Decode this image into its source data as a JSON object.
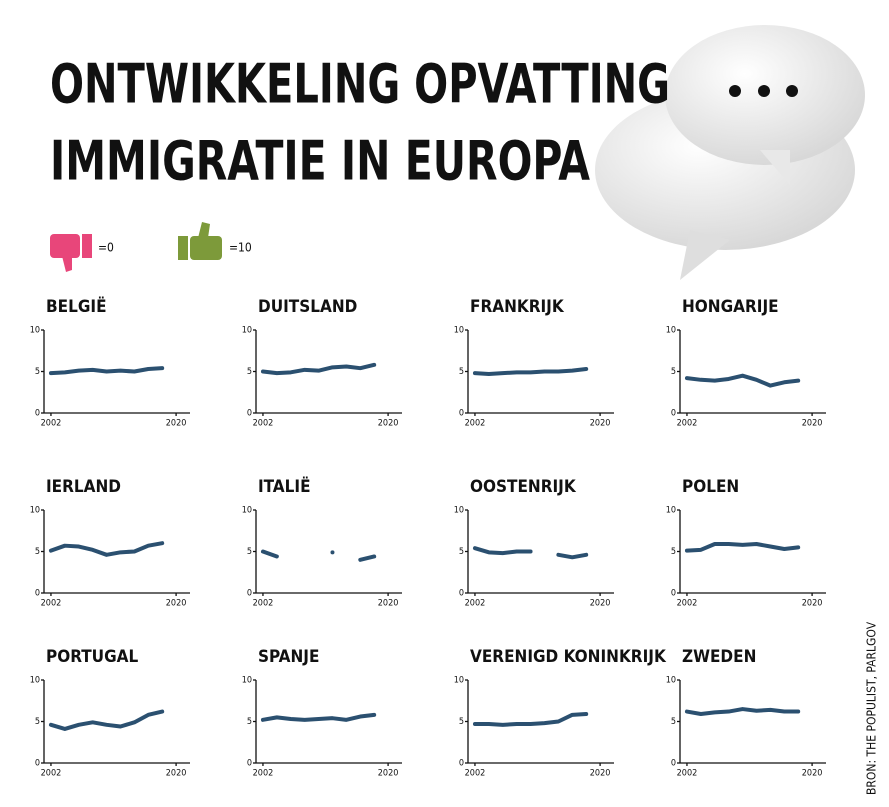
{
  "header": {
    "title": [
      "ONTWIKKELING OPVATTING",
      "IMMIGRATIE IN EUROPA"
    ],
    "legend": [
      {
        "label": "=0"
      },
      {
        "label": "=10"
      }
    ]
  },
  "source": "BRON: THE POPULIST, PARLGOV",
  "chart_data": [
    {
      "type": "line",
      "title": "BELGIË",
      "color": "#2b5070",
      "x": [
        2002,
        2004,
        2006,
        2008,
        2010,
        2012,
        2014,
        2016,
        2018
      ],
      "values": [
        4.8,
        4.9,
        5.1,
        5.2,
        5.0,
        5.1,
        5.0,
        5.3,
        5.4
      ],
      "xlim": [
        2001,
        2022
      ],
      "xticks": [
        2002,
        2020
      ],
      "ylim": [
        0,
        10
      ],
      "yticks": [
        0,
        5,
        10
      ]
    },
    {
      "type": "line",
      "title": "DUITSLAND",
      "color": "#2b5070",
      "x": [
        2002,
        2004,
        2006,
        2008,
        2010,
        2012,
        2014,
        2016,
        2018
      ],
      "values": [
        5.0,
        4.8,
        4.9,
        5.2,
        5.1,
        5.5,
        5.6,
        5.4,
        5.8
      ],
      "xlim": [
        2001,
        2022
      ],
      "xticks": [
        2002,
        2020
      ],
      "ylim": [
        0,
        10
      ],
      "yticks": [
        0,
        5,
        10
      ]
    },
    {
      "type": "line",
      "title": "FRANKRIJK",
      "color": "#2b5070",
      "x": [
        2002,
        2004,
        2006,
        2008,
        2010,
        2012,
        2014,
        2016,
        2018
      ],
      "values": [
        4.8,
        4.7,
        4.8,
        4.9,
        4.9,
        5.0,
        5.0,
        5.1,
        5.3
      ],
      "xlim": [
        2001,
        2022
      ],
      "xticks": [
        2002,
        2020
      ],
      "ylim": [
        0,
        10
      ],
      "yticks": [
        0,
        5,
        10
      ]
    },
    {
      "type": "line",
      "title": "HONGARIJE",
      "color": "#2b5070",
      "x": [
        2002,
        2004,
        2006,
        2008,
        2010,
        2012,
        2014,
        2016,
        2018
      ],
      "values": [
        4.2,
        4.0,
        3.9,
        4.1,
        4.5,
        4.0,
        3.3,
        3.7,
        3.9
      ],
      "xlim": [
        2001,
        2022
      ],
      "xticks": [
        2002,
        2020
      ],
      "ylim": [
        0,
        10
      ],
      "yticks": [
        0,
        5,
        10
      ]
    },
    {
      "type": "line",
      "title": "IERLAND",
      "color": "#2b5070",
      "x": [
        2002,
        2004,
        2006,
        2008,
        2010,
        2012,
        2014,
        2016,
        2018
      ],
      "values": [
        5.1,
        5.7,
        5.6,
        5.2,
        4.6,
        4.9,
        5.0,
        5.7,
        6.0
      ],
      "xlim": [
        2001,
        2022
      ],
      "xticks": [
        2002,
        2020
      ],
      "ylim": [
        0,
        10
      ],
      "yticks": [
        0,
        5,
        10
      ]
    },
    {
      "type": "line",
      "title": "ITALIË",
      "color": "#2b5070",
      "x": [
        2002,
        2004,
        2006,
        2008,
        2010,
        2012,
        2014,
        2016,
        2018
      ],
      "values": [
        5.0,
        4.4,
        null,
        null,
        null,
        4.9,
        null,
        4.0,
        4.4
      ],
      "xlim": [
        2001,
        2022
      ],
      "xticks": [
        2002,
        2020
      ],
      "ylim": [
        0,
        10
      ],
      "yticks": [
        0,
        5,
        10
      ]
    },
    {
      "type": "line",
      "title": "OOSTENRIJK",
      "color": "#2b5070",
      "x": [
        2002,
        2004,
        2006,
        2008,
        2010,
        2012,
        2014,
        2016,
        2018
      ],
      "values": [
        5.4,
        4.9,
        4.8,
        5.0,
        5.0,
        null,
        4.6,
        4.3,
        4.6
      ],
      "xlim": [
        2001,
        2022
      ],
      "xticks": [
        2002,
        2020
      ],
      "ylim": [
        0,
        10
      ],
      "yticks": [
        0,
        5,
        10
      ]
    },
    {
      "type": "line",
      "title": "POLEN",
      "color": "#2b5070",
      "x": [
        2002,
        2004,
        2006,
        2008,
        2010,
        2012,
        2014,
        2016,
        2018
      ],
      "values": [
        5.1,
        5.2,
        5.9,
        5.9,
        5.8,
        5.9,
        5.6,
        5.3,
        5.5
      ],
      "xlim": [
        2001,
        2022
      ],
      "xticks": [
        2002,
        2020
      ],
      "ylim": [
        0,
        10
      ],
      "yticks": [
        0,
        5,
        10
      ]
    },
    {
      "type": "line",
      "title": "PORTUGAL",
      "color": "#2b5070",
      "x": [
        2002,
        2004,
        2006,
        2008,
        2010,
        2012,
        2014,
        2016,
        2018
      ],
      "values": [
        4.6,
        4.1,
        4.6,
        4.9,
        4.6,
        4.4,
        4.9,
        5.8,
        6.2
      ],
      "xlim": [
        2001,
        2022
      ],
      "xticks": [
        2002,
        2020
      ],
      "ylim": [
        0,
        10
      ],
      "yticks": [
        0,
        5,
        10
      ]
    },
    {
      "type": "line",
      "title": "SPANJE",
      "color": "#2b5070",
      "x": [
        2002,
        2004,
        2006,
        2008,
        2010,
        2012,
        2014,
        2016,
        2018
      ],
      "values": [
        5.2,
        5.5,
        5.3,
        5.2,
        5.3,
        5.4,
        5.2,
        5.6,
        5.8
      ],
      "xlim": [
        2001,
        2022
      ],
      "xticks": [
        2002,
        2020
      ],
      "ylim": [
        0,
        10
      ],
      "yticks": [
        0,
        5,
        10
      ]
    },
    {
      "type": "line",
      "title": "VERENIGD KONINKRIJK",
      "color": "#2b5070",
      "x": [
        2002,
        2004,
        2006,
        2008,
        2010,
        2012,
        2014,
        2016,
        2018
      ],
      "values": [
        4.7,
        4.7,
        4.6,
        4.7,
        4.7,
        4.8,
        5.0,
        5.8,
        5.9
      ],
      "xlim": [
        2001,
        2022
      ],
      "xticks": [
        2002,
        2020
      ],
      "ylim": [
        0,
        10
      ],
      "yticks": [
        0,
        5,
        10
      ]
    },
    {
      "type": "line",
      "title": "ZWEDEN",
      "color": "#2b5070",
      "x": [
        2002,
        2004,
        2006,
        2008,
        2010,
        2012,
        2014,
        2016,
        2018
      ],
      "values": [
        6.2,
        5.9,
        6.1,
        6.2,
        6.5,
        6.3,
        6.4,
        6.2,
        6.2
      ],
      "xlim": [
        2001,
        2022
      ],
      "xticks": [
        2002,
        2020
      ],
      "ylim": [
        0,
        10
      ],
      "yticks": [
        0,
        5,
        10
      ]
    }
  ]
}
